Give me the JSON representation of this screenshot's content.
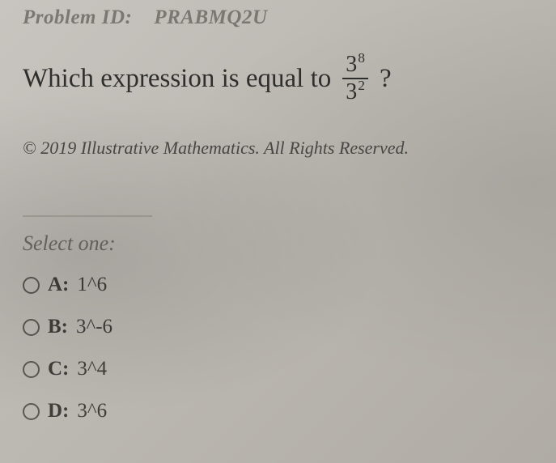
{
  "problem": {
    "id_label": "Problem ID:",
    "id_value": "PRABMQ2U",
    "question_prefix": "Which expression is equal to",
    "fraction": {
      "numerator_base": "3",
      "numerator_exp": "8",
      "denominator_base": "3",
      "denominator_exp": "2"
    },
    "question_suffix": "?",
    "copyright": "© 2019 Illustrative Mathematics. All Rights Reserved.",
    "select_prompt": "Select one:"
  },
  "options": [
    {
      "label": "A:",
      "value": "1^6",
      "selected": false
    },
    {
      "label": "B:",
      "value": "3^-6",
      "selected": false
    },
    {
      "label": "C:",
      "value": "3^4",
      "selected": false
    },
    {
      "label": "D:",
      "value": "3^6",
      "selected": false
    }
  ],
  "style": {
    "background_colors": [
      "#c8c5c0",
      "#bdb9b3",
      "#b0aca5"
    ],
    "text_color": "#3a3a38",
    "muted_color": "#7a7872",
    "radio_border": "#5a5954",
    "fraction_bar_color": "#2f2f2d",
    "font_family": "Georgia",
    "question_fontsize_pt": 25,
    "option_fontsize_pt": 19,
    "copyright_fontsize_pt": 17
  }
}
